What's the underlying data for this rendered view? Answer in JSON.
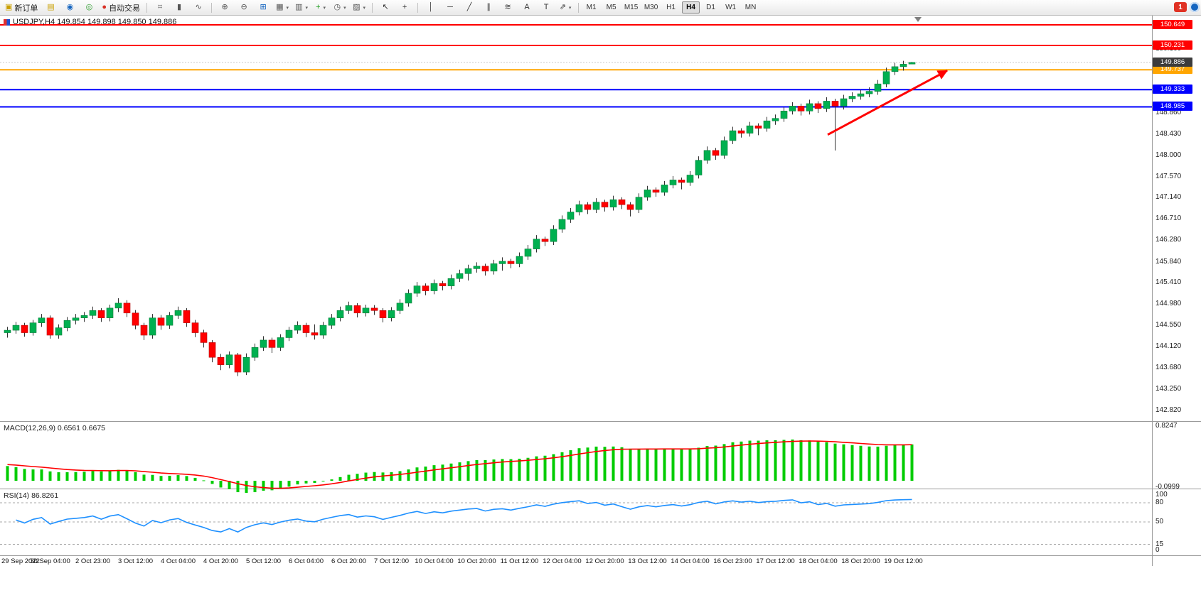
{
  "toolbar": {
    "buttons": [
      {
        "name": "new-order-button",
        "glyph": "▣",
        "color": "#caa002",
        "label": "新订单"
      },
      {
        "name": "charts-button",
        "glyph": "▤",
        "color": "#caa002"
      },
      {
        "name": "profiles-button",
        "glyph": "◉",
        "color": "#1565c0"
      },
      {
        "name": "navigator-button",
        "glyph": "◎",
        "color": "#2e9e2e"
      },
      {
        "name": "auto-trading-button",
        "glyph": "●",
        "color": "#d83025",
        "label": "自动交易"
      },
      {
        "sep": true
      },
      {
        "name": "bar-chart-button",
        "glyph": "⌗",
        "color": "#555555"
      },
      {
        "name": "candlestick-chart-button",
        "glyph": "▮",
        "color": "#555555"
      },
      {
        "name": "line-chart-button",
        "glyph": "∿",
        "color": "#555555"
      },
      {
        "sep": true
      },
      {
        "name": "zoom-in-button",
        "glyph": "⊕",
        "color": "#555555"
      },
      {
        "name": "zoom-out-button",
        "glyph": "⊖",
        "color": "#555555"
      },
      {
        "name": "tile-windows-button",
        "glyph": "⊞",
        "color": "#1565c0"
      },
      {
        "name": "arrange-charts-button",
        "glyph": "▦",
        "color": "#555555",
        "caret": true
      },
      {
        "name": "chart-list-button",
        "glyph": "▥",
        "color": "#555555",
        "caret": true
      },
      {
        "name": "indicators-button",
        "glyph": "+",
        "color": "#1f9d1f",
        "caret": true
      },
      {
        "name": "periods-button",
        "glyph": "◷",
        "color": "#555555",
        "caret": true
      },
      {
        "name": "templates-button",
        "glyph": "▨",
        "color": "#555555",
        "caret": true
      },
      {
        "sep": true
      },
      {
        "name": "cursor-button",
        "glyph": "↖",
        "color": "#333333"
      },
      {
        "name": "crosshair-button",
        "glyph": "+",
        "color": "#333333"
      },
      {
        "sep": true
      },
      {
        "name": "vertical-line-button",
        "glyph": "│",
        "color": "#333333"
      },
      {
        "name": "horizontal-line-button",
        "glyph": "─",
        "color": "#333333"
      },
      {
        "name": "trendline-button",
        "glyph": "╱",
        "color": "#333333"
      },
      {
        "name": "equidistant-channel-button",
        "glyph": "∥",
        "color": "#333333"
      },
      {
        "name": "fibonacci-button",
        "glyph": "≋",
        "color": "#333333"
      },
      {
        "name": "text-button",
        "glyph": "A",
        "color": "#333333"
      },
      {
        "name": "text-label-button",
        "glyph": "T",
        "color": "#333333"
      },
      {
        "name": "arrows-button",
        "glyph": "⇗",
        "color": "#333333",
        "caret": true
      },
      {
        "sep": true
      }
    ],
    "timeframes": [
      "M1",
      "M5",
      "M15",
      "M30",
      "H1",
      "H4",
      "D1",
      "W1",
      "MN"
    ],
    "active_timeframe": "H4",
    "notification_count": "1"
  },
  "chart": {
    "title": "USDJPY,H4  149.854 149.898 149.850 149.886",
    "symbol": "USDJPY",
    "period": "H4",
    "open": "149.854",
    "high": "149.898",
    "low": "149.850",
    "close": "149.886"
  },
  "chart_data": {
    "type": "candlestick",
    "symbol": "USDJPY",
    "timeframe": "H4",
    "ylim": [
      142.62,
      150.75
    ],
    "colors": {
      "up": "#00b050",
      "down": "#ff0000",
      "wick": "#333333",
      "macd_hist": "#00cc00",
      "macd_signal": "#ff0000",
      "rsi_line": "#1e90ff"
    },
    "candles": [
      [
        144.4,
        144.52,
        144.3,
        144.45
      ],
      [
        144.45,
        144.62,
        144.38,
        144.55
      ],
      [
        144.55,
        144.6,
        144.32,
        144.4
      ],
      [
        144.4,
        144.66,
        144.34,
        144.6
      ],
      [
        144.6,
        144.78,
        144.52,
        144.7
      ],
      [
        144.7,
        144.75,
        144.28,
        144.35
      ],
      [
        144.35,
        144.57,
        144.28,
        144.5
      ],
      [
        144.5,
        144.72,
        144.43,
        144.65
      ],
      [
        144.65,
        144.78,
        144.57,
        144.7
      ],
      [
        144.7,
        144.82,
        144.62,
        144.75
      ],
      [
        144.75,
        144.93,
        144.68,
        144.85
      ],
      [
        144.85,
        144.9,
        144.62,
        144.7
      ],
      [
        144.7,
        144.97,
        144.63,
        144.9
      ],
      [
        144.9,
        145.1,
        144.82,
        145.0
      ],
      [
        145.0,
        145.06,
        144.72,
        144.8
      ],
      [
        144.8,
        144.86,
        144.47,
        144.55
      ],
      [
        144.55,
        144.6,
        144.25,
        144.35
      ],
      [
        144.35,
        144.78,
        144.28,
        144.7
      ],
      [
        144.7,
        144.76,
        144.46,
        144.55
      ],
      [
        144.55,
        144.82,
        144.48,
        144.75
      ],
      [
        144.75,
        144.93,
        144.68,
        144.85
      ],
      [
        144.85,
        144.9,
        144.52,
        144.6
      ],
      [
        144.6,
        144.66,
        144.31,
        144.4
      ],
      [
        144.4,
        144.46,
        144.1,
        144.2
      ],
      [
        144.2,
        144.25,
        143.8,
        143.9
      ],
      [
        143.9,
        143.97,
        143.64,
        143.75
      ],
      [
        143.75,
        144.02,
        143.68,
        143.95
      ],
      [
        143.95,
        143.99,
        143.52,
        143.6
      ],
      [
        143.6,
        143.98,
        143.54,
        143.9
      ],
      [
        143.9,
        144.18,
        143.83,
        144.1
      ],
      [
        144.1,
        144.33,
        144.03,
        144.25
      ],
      [
        144.25,
        144.3,
        143.99,
        144.1
      ],
      [
        144.1,
        144.37,
        144.03,
        144.3
      ],
      [
        144.3,
        144.52,
        144.23,
        144.45
      ],
      [
        144.45,
        144.63,
        144.38,
        144.55
      ],
      [
        144.55,
        144.6,
        144.31,
        144.4
      ],
      [
        144.4,
        144.57,
        144.26,
        144.35
      ],
      [
        144.35,
        144.62,
        144.28,
        144.55
      ],
      [
        144.55,
        144.78,
        144.48,
        144.7
      ],
      [
        144.7,
        144.93,
        144.63,
        144.85
      ],
      [
        144.85,
        145.03,
        144.78,
        144.95
      ],
      [
        144.95,
        145.0,
        144.71,
        144.8
      ],
      [
        144.8,
        144.97,
        144.73,
        144.9
      ],
      [
        144.9,
        144.96,
        144.76,
        144.85
      ],
      [
        144.85,
        144.9,
        144.61,
        144.7
      ],
      [
        144.7,
        144.92,
        144.63,
        144.85
      ],
      [
        144.85,
        145.08,
        144.78,
        145.0
      ],
      [
        145.0,
        145.28,
        144.93,
        145.2
      ],
      [
        145.2,
        145.43,
        145.13,
        145.35
      ],
      [
        145.35,
        145.4,
        145.16,
        145.25
      ],
      [
        145.25,
        145.48,
        145.18,
        145.4
      ],
      [
        145.4,
        145.45,
        145.26,
        145.35
      ],
      [
        145.35,
        145.58,
        145.28,
        145.5
      ],
      [
        145.5,
        145.68,
        145.43,
        145.6
      ],
      [
        145.6,
        145.78,
        145.46,
        145.7
      ],
      [
        145.7,
        145.83,
        145.62,
        145.75
      ],
      [
        145.75,
        145.8,
        145.56,
        145.65
      ],
      [
        145.65,
        145.88,
        145.58,
        145.8
      ],
      [
        145.8,
        145.93,
        145.66,
        145.85
      ],
      [
        145.85,
        145.9,
        145.71,
        145.8
      ],
      [
        145.8,
        146.03,
        145.73,
        145.95
      ],
      [
        145.95,
        146.18,
        145.88,
        146.1
      ],
      [
        146.1,
        146.38,
        146.03,
        146.3
      ],
      [
        146.3,
        146.35,
        146.16,
        146.25
      ],
      [
        146.25,
        146.58,
        146.18,
        146.5
      ],
      [
        146.5,
        146.78,
        146.43,
        146.7
      ],
      [
        146.7,
        146.93,
        146.63,
        146.85
      ],
      [
        146.85,
        147.08,
        146.78,
        147.0
      ],
      [
        147.0,
        147.05,
        146.81,
        146.9
      ],
      [
        146.9,
        147.13,
        146.83,
        147.05
      ],
      [
        147.05,
        147.1,
        146.86,
        146.95
      ],
      [
        146.95,
        147.18,
        146.88,
        147.1
      ],
      [
        147.1,
        147.15,
        146.91,
        147.0
      ],
      [
        147.0,
        147.05,
        146.76,
        146.9
      ],
      [
        146.9,
        147.23,
        146.83,
        147.15
      ],
      [
        147.15,
        147.38,
        147.08,
        147.3
      ],
      [
        147.3,
        147.35,
        147.16,
        147.25
      ],
      [
        147.25,
        147.48,
        147.18,
        147.4
      ],
      [
        147.4,
        147.58,
        147.33,
        147.5
      ],
      [
        147.5,
        147.55,
        147.31,
        147.45
      ],
      [
        147.45,
        147.68,
        147.38,
        147.6
      ],
      [
        147.6,
        147.98,
        147.53,
        147.9
      ],
      [
        147.9,
        148.18,
        147.83,
        148.1
      ],
      [
        148.1,
        148.15,
        147.91,
        148.0
      ],
      [
        148.0,
        148.38,
        147.93,
        148.3
      ],
      [
        148.3,
        148.58,
        148.23,
        148.5
      ],
      [
        148.5,
        148.55,
        148.36,
        148.45
      ],
      [
        148.45,
        148.68,
        148.38,
        148.6
      ],
      [
        148.6,
        148.65,
        148.41,
        148.55
      ],
      [
        148.55,
        148.78,
        148.48,
        148.7
      ],
      [
        148.7,
        148.83,
        148.62,
        148.75
      ],
      [
        148.75,
        148.98,
        148.68,
        148.9
      ],
      [
        148.9,
        149.08,
        148.83,
        149.0
      ],
      [
        149.0,
        149.05,
        148.81,
        148.9
      ],
      [
        148.9,
        149.13,
        148.83,
        149.05
      ],
      [
        149.05,
        149.1,
        148.86,
        148.95
      ],
      [
        148.95,
        149.18,
        148.88,
        149.1
      ],
      [
        149.1,
        149.15,
        148.1,
        149.0
      ],
      [
        149.0,
        149.23,
        148.93,
        149.15
      ],
      [
        149.15,
        149.28,
        149.08,
        149.2
      ],
      [
        149.2,
        149.33,
        149.13,
        149.25
      ],
      [
        149.25,
        149.38,
        149.18,
        149.3
      ],
      [
        149.3,
        149.53,
        149.23,
        149.45
      ],
      [
        149.45,
        149.78,
        149.38,
        149.7
      ],
      [
        149.7,
        149.88,
        149.63,
        149.8
      ],
      [
        149.8,
        149.92,
        149.72,
        149.85
      ],
      [
        149.854,
        149.898,
        149.85,
        149.886
      ]
    ],
    "time_labels": [
      "29 Sep 2022",
      "30 Sep 04:00",
      "2 Oct 23:00",
      "3 Oct 12:00",
      "4 Oct 04:00",
      "4 Oct 20:00",
      "5 Oct 12:00",
      "6 Oct 04:00",
      "6 Oct 20:00",
      "7 Oct 12:00",
      "10 Oct 04:00",
      "10 Oct 20:00",
      "11 Oct 12:00",
      "12 Oct 04:00",
      "12 Oct 20:00",
      "13 Oct 12:00",
      "14 Oct 04:00",
      "16 Oct 23:00",
      "17 Oct 12:00",
      "18 Oct 04:00",
      "18 Oct 20:00",
      "19 Oct 12:00"
    ],
    "price_gridline_labels": [
      "150.590",
      "150.160",
      "148.860",
      "148.430",
      "148.000",
      "147.570",
      "147.140",
      "146.710",
      "146.280",
      "145.840",
      "145.410",
      "144.980",
      "144.550",
      "144.120",
      "143.680",
      "143.250",
      "142.820"
    ],
    "hlines": [
      {
        "price": 150.649,
        "label": "150.649",
        "color": "#ff0000"
      },
      {
        "price": 150.231,
        "label": "150.231",
        "color": "#ff0000"
      },
      {
        "price": 149.737,
        "label": "149.737",
        "color": "#ffa500"
      },
      {
        "price": 149.333,
        "label": "149.333",
        "color": "#0000ff"
      },
      {
        "price": 148.985,
        "label": "148.985",
        "color": "#0000ff"
      }
    ],
    "current_price": {
      "price": 149.886,
      "label": "149.886",
      "tag_color": "#3c3c3c"
    },
    "trend_arrow": {
      "x1_index": 96.5,
      "y1_price": 148.42,
      "x2_index": 110.5,
      "y2_price": 149.72,
      "color": "#ff0000"
    },
    "indicators": [
      {
        "name": "MACD",
        "label": "MACD(12,26,9) 0.6561 0.6675",
        "params": [
          12,
          26,
          9
        ],
        "values": [
          "0.6561",
          "0.6675"
        ],
        "axis_labels": [
          {
            "text": "0.8247",
            "value": 0.8247
          },
          {
            "text": "-0.0999",
            "value": -0.0999
          }
        ]
      },
      {
        "name": "RSI",
        "label": "RSI(14) 86.8261",
        "period": 14,
        "value": "86.8261",
        "levels": [
          80,
          50,
          15
        ],
        "axis_labels": [
          {
            "text": "100",
            "value": 100
          },
          {
            "text": "80",
            "value": 80
          },
          {
            "text": "50",
            "value": 50
          },
          {
            "text": "15",
            "value": 15
          },
          {
            "text": "0",
            "value": 0
          }
        ]
      }
    ]
  }
}
